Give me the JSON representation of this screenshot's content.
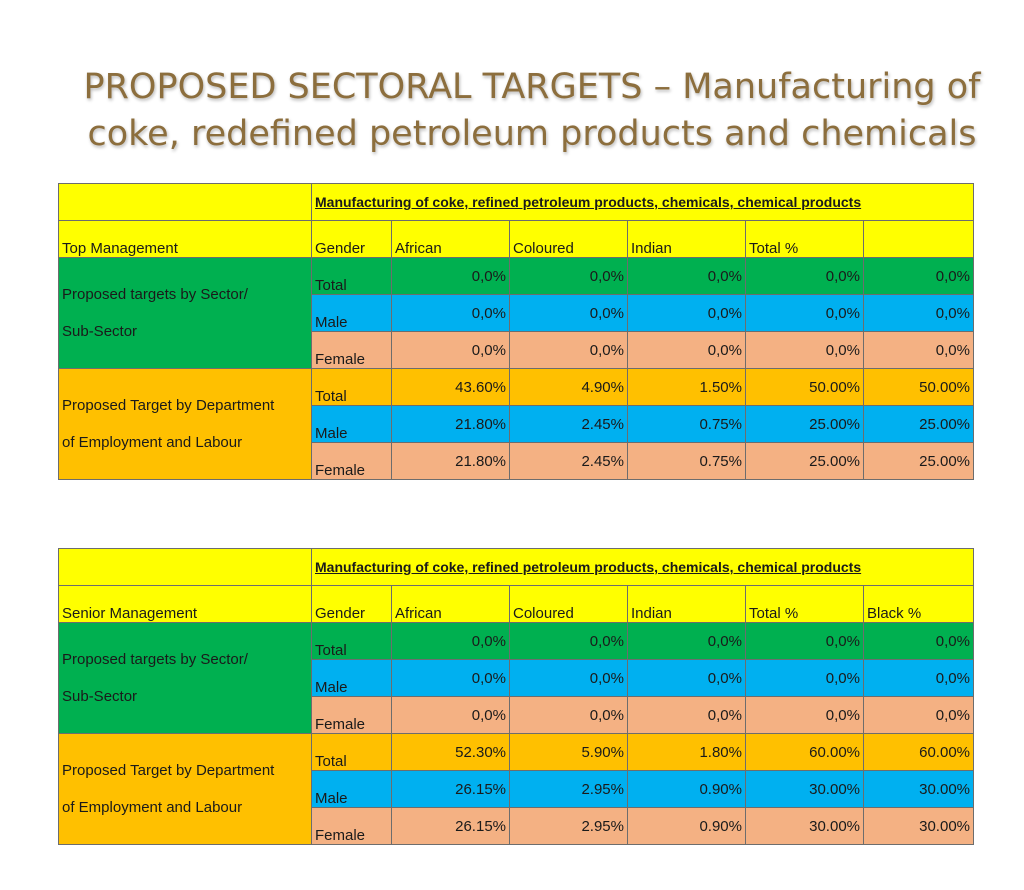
{
  "slide": {
    "title_line1": "PROPOSED SECTORAL TARGETS – Manufacturing of",
    "title_line2": "coke, redefined petroleum products and chemicals"
  },
  "colors": {
    "title": "#8c6e3d",
    "header_yellow": "#ffff00",
    "green": "#00b050",
    "blue": "#00b0f0",
    "peach": "#f4b183",
    "orange": "#ffc000"
  },
  "tables": [
    {
      "sector_heading": "Manufacturing of coke, refined petroleum products, chemicals, chemical products",
      "level": "Top Management",
      "columns": [
        "Gender",
        "African",
        "Coloured",
        "Indian",
        "Total %",
        ""
      ],
      "groups": [
        {
          "label_line1": "Proposed targets by Sector/",
          "label_line2": "Sub-Sector",
          "rows": [
            {
              "gender": "Total",
              "values": [
                "0,0%",
                "0,0%",
                "0,0%",
                "0,0%",
                "0,0%"
              ]
            },
            {
              "gender": "Male",
              "values": [
                "0,0%",
                "0,0%",
                "0,0%",
                "0,0%",
                "0,0%"
              ]
            },
            {
              "gender": "Female",
              "values": [
                "0,0%",
                "0,0%",
                "0,0%",
                "0,0%",
                "0,0%"
              ]
            }
          ]
        },
        {
          "label_line1": "Proposed Target by Department",
          "label_line2": "of Employment and Labour",
          "rows": [
            {
              "gender": "Total",
              "values": [
                "43.60%",
                "4.90%",
                "1.50%",
                "50.00%",
                "50.00%"
              ]
            },
            {
              "gender": "Male",
              "values": [
                "21.80%",
                "2.45%",
                "0.75%",
                "25.00%",
                "25.00%"
              ]
            },
            {
              "gender": "Female",
              "values": [
                "21.80%",
                "2.45%",
                "0.75%",
                "25.00%",
                "25.00%"
              ]
            }
          ]
        }
      ]
    },
    {
      "sector_heading": "Manufacturing of coke, refined petroleum products, chemicals, chemical products",
      "level": "Senior  Management",
      "columns": [
        "Gender",
        "African",
        "Coloured",
        "Indian",
        "Total %",
        "Black %"
      ],
      "groups": [
        {
          "label_line1": "Proposed targets by Sector/",
          "label_line2": "Sub-Sector",
          "rows": [
            {
              "gender": "Total",
              "values": [
                "0,0%",
                "0,0%",
                "0,0%",
                "0,0%",
                "0,0%"
              ]
            },
            {
              "gender": "Male",
              "values": [
                "0,0%",
                "0,0%",
                "0,0%",
                "0,0%",
                "0,0%"
              ]
            },
            {
              "gender": "Female",
              "values": [
                "0,0%",
                "0,0%",
                "0,0%",
                "0,0%",
                "0,0%"
              ]
            }
          ]
        },
        {
          "label_line1": "Proposed Target by Department",
          "label_line2": "of Employment and Labour",
          "rows": [
            {
              "gender": "Total",
              "values": [
                "52.30%",
                "5.90%",
                "1.80%",
                "60.00%",
                "60.00%"
              ]
            },
            {
              "gender": "Male",
              "values": [
                "26.15%",
                "2.95%",
                "0.90%",
                "30.00%",
                "30.00%"
              ]
            },
            {
              "gender": "Female",
              "values": [
                "26.15%",
                "2.95%",
                "0.90%",
                "30.00%",
                "30.00%"
              ]
            }
          ]
        }
      ]
    }
  ]
}
